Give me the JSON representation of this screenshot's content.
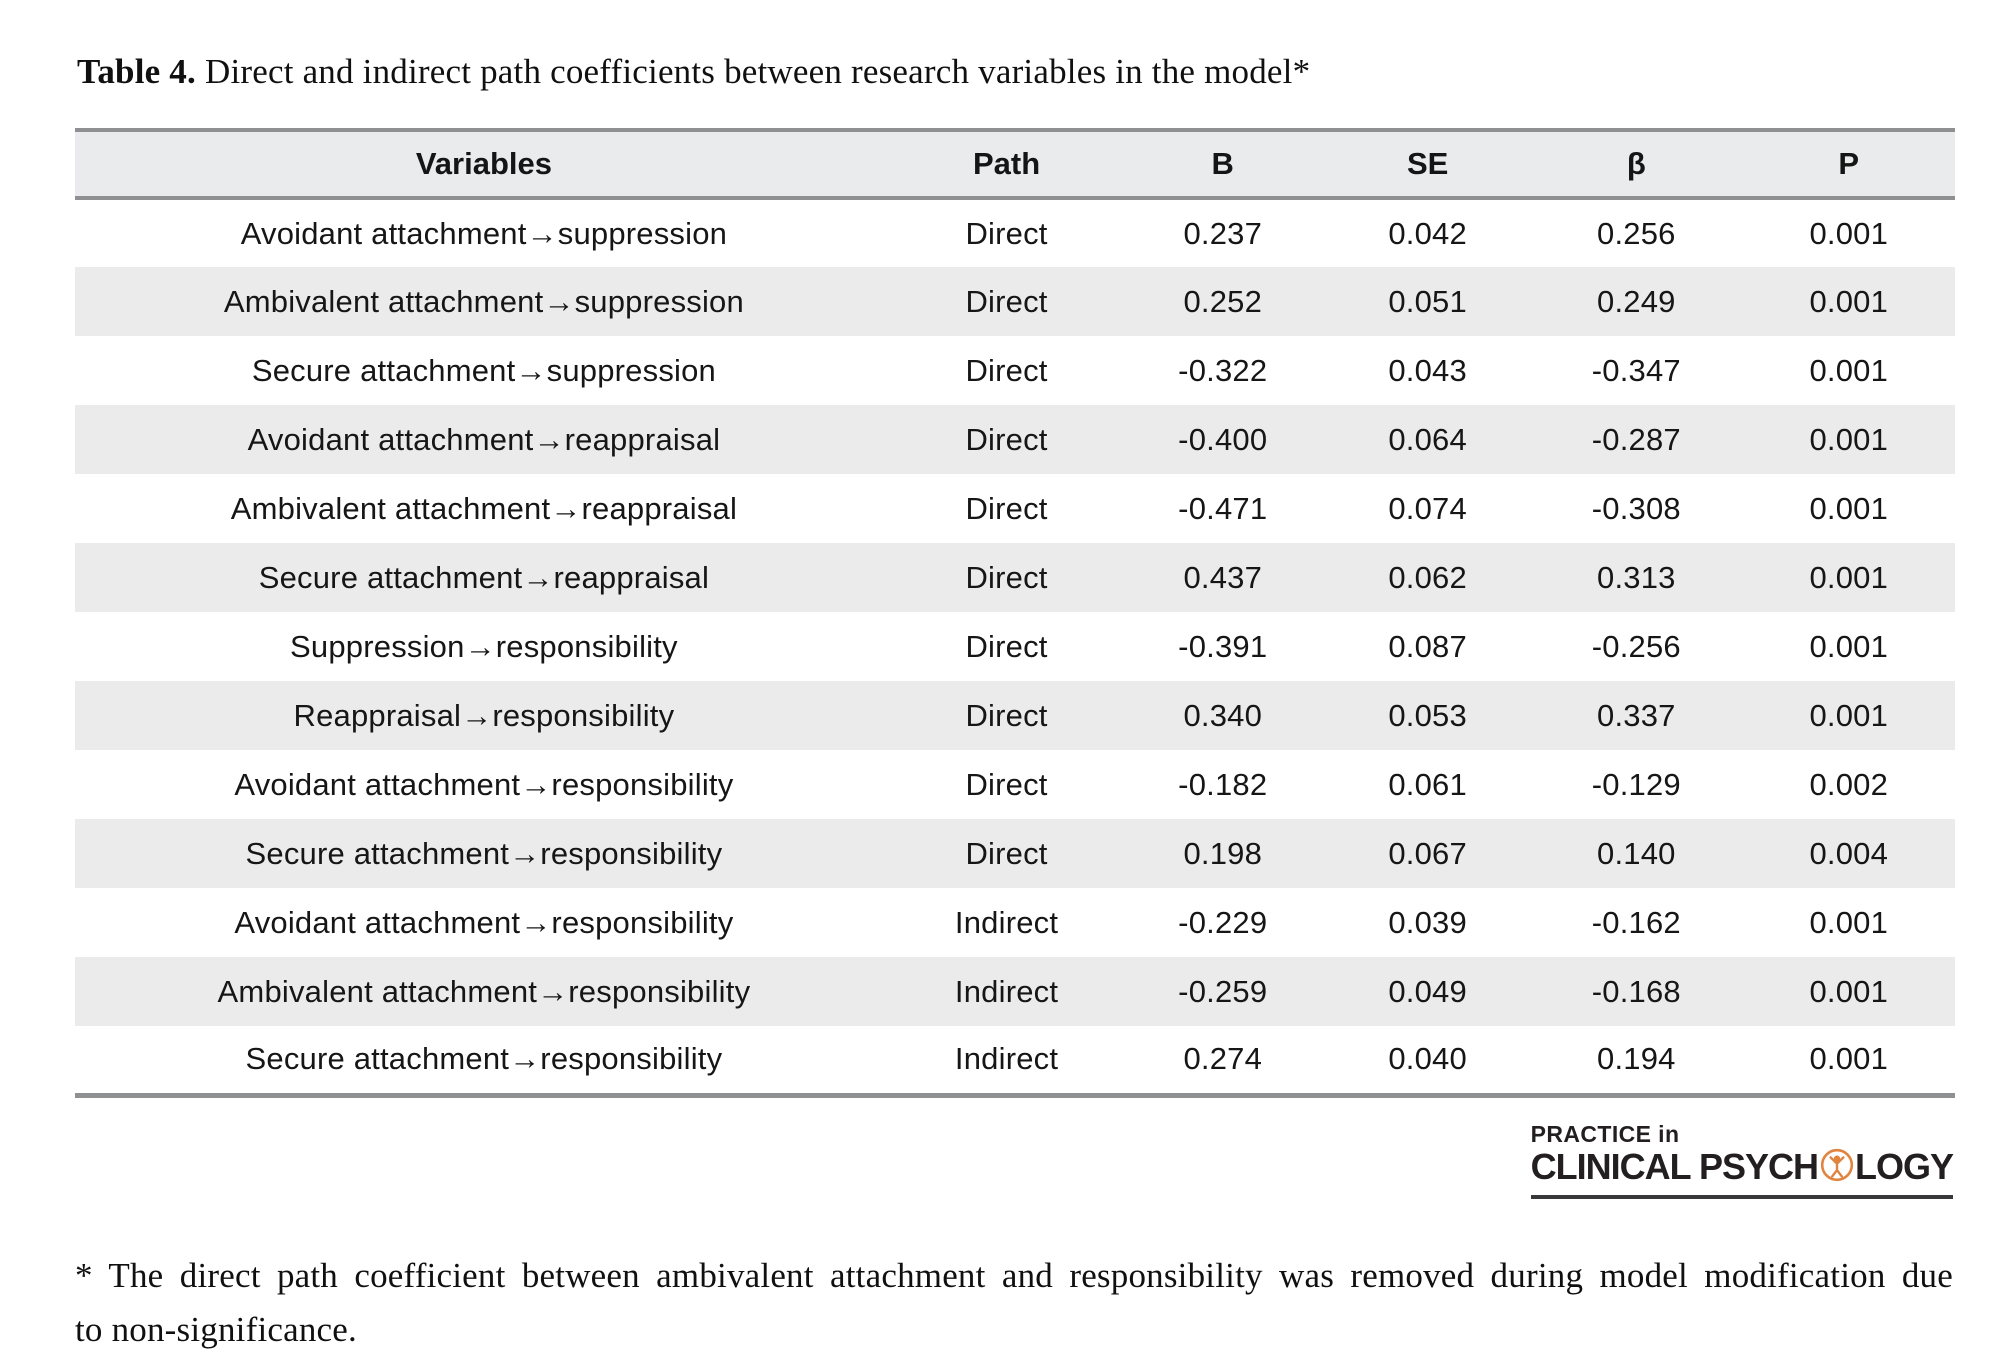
{
  "caption": {
    "label": "Table 4.",
    "text": "Direct and indirect path coefficients between research variables in the model*"
  },
  "table": {
    "columns": [
      "Variables",
      "Path",
      "B",
      "SE",
      "β",
      "P"
    ],
    "rows": [
      [
        "Avoidant attachment→suppression",
        "Direct",
        "0.237",
        "0.042",
        "0.256",
        "0.001"
      ],
      [
        "Ambivalent attachment→suppression",
        "Direct",
        "0.252",
        "0.051",
        "0.249",
        "0.001"
      ],
      [
        "Secure attachment→suppression",
        "Direct",
        "-0.322",
        "0.043",
        "-0.347",
        "0.001"
      ],
      [
        "Avoidant attachment→reappraisal",
        "Direct",
        "-0.400",
        "0.064",
        "-0.287",
        "0.001"
      ],
      [
        "Ambivalent attachment→reappraisal",
        "Direct",
        "-0.471",
        "0.074",
        "-0.308",
        "0.001"
      ],
      [
        "Secure attachment→reappraisal",
        "Direct",
        "0.437",
        "0.062",
        "0.313",
        "0.001"
      ],
      [
        "Suppression→responsibility",
        "Direct",
        "-0.391",
        "0.087",
        "-0.256",
        "0.001"
      ],
      [
        "Reappraisal→responsibility",
        "Direct",
        "0.340",
        "0.053",
        "0.337",
        "0.001"
      ],
      [
        "Avoidant attachment→responsibility",
        "Direct",
        "-0.182",
        "0.061",
        "-0.129",
        "0.002"
      ],
      [
        "Secure attachment→responsibility",
        "Direct",
        "0.198",
        "0.067",
        "0.140",
        "0.004"
      ],
      [
        "Avoidant attachment→responsibility",
        "Indirect",
        "-0.229",
        "0.039",
        "-0.162",
        "0.001"
      ],
      [
        "Ambivalent attachment→responsibility",
        "Indirect",
        "-0.259",
        "0.049",
        "-0.168",
        "0.001"
      ],
      [
        "Secure attachment→responsibility",
        "Indirect",
        "0.274",
        "0.040",
        "0.194",
        "0.001"
      ]
    ]
  },
  "logo": {
    "line1": "PRACTICE in",
    "line2_pre": "CLINICAL PSYCH",
    "line2_post": "LOGY",
    "icon": "person-in-circle-icon",
    "accent_color": "#e08440",
    "text_color": "#231f20"
  },
  "footnote": {
    "line1": "* The direct path coefficient between ambivalent attachment and responsibility was removed during model modification due",
    "line2": "to non-significance."
  },
  "colors": {
    "header_bg": "#eaebed",
    "stripe_bg": "#ebebeb",
    "rule_gray": "#8e9092",
    "logo_underline": "#38383a"
  }
}
